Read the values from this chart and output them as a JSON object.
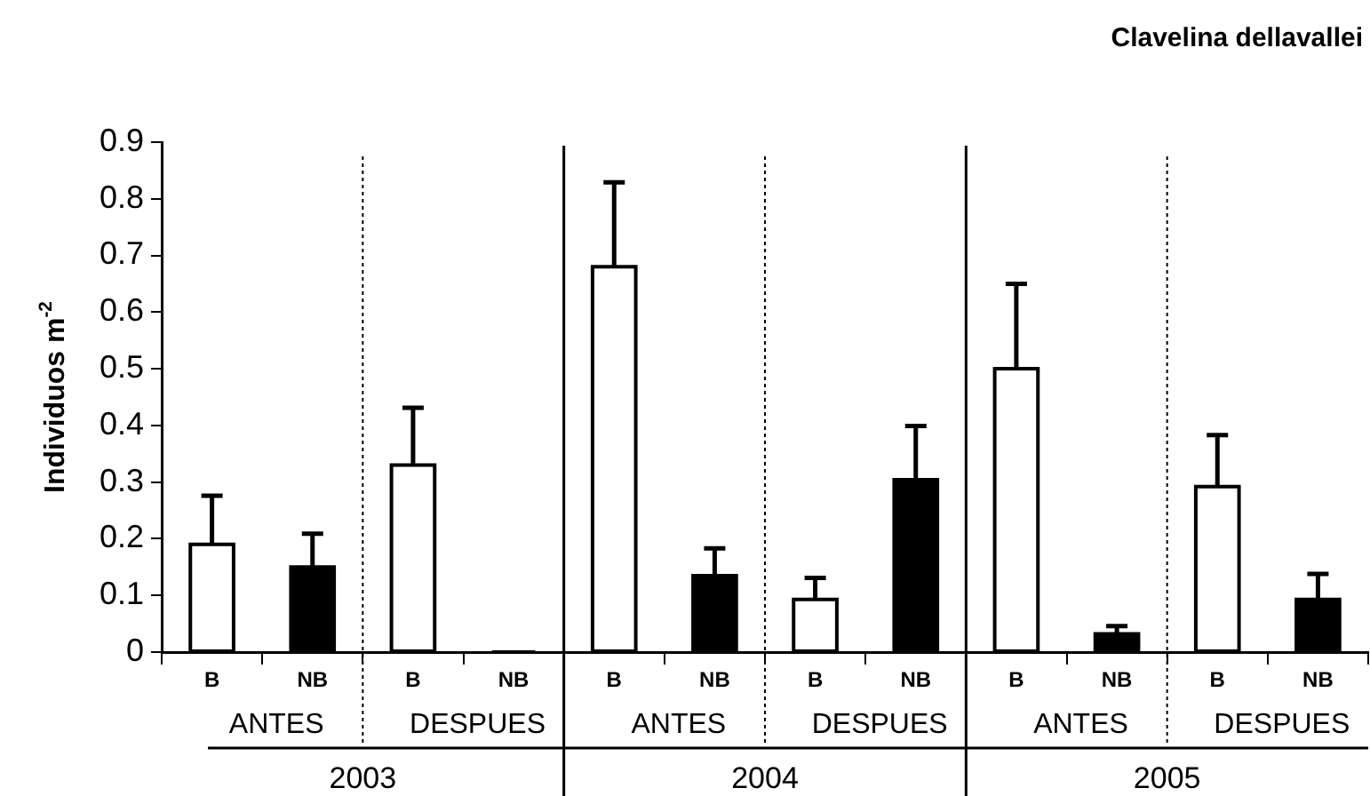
{
  "chart_data": {
    "type": "bar",
    "title": "Clavelina dellavallei",
    "ylabel": "Individuos m$^{-2}$",
    "categories": [
      "B",
      "NB",
      "B",
      "NB",
      "B",
      "NB",
      "B",
      "NB",
      "B",
      "NB",
      "B",
      "NB"
    ],
    "values": [
      0.19,
      0.15,
      0.33,
      0,
      0.68,
      0.135,
      0.093,
      0.304,
      0.5,
      0.032,
      0.292,
      0.093
    ],
    "colors": [
      "#ffffff",
      "#000000",
      "#ffffff",
      "#000000",
      "#ffffff",
      "#000000",
      "#ffffff",
      "#000000",
      "#ffffff",
      "#000000",
      "#ffffff",
      "#000000"
    ],
    "errors": [
      [
        0.19,
        0.276
      ],
      [
        0.15,
        0.209
      ],
      [
        0.33,
        0.431
      ],
      null,
      [
        0.68,
        0.829
      ],
      [
        0.135,
        0.183
      ],
      [
        0.093,
        0.131
      ],
      [
        0.304,
        0.399
      ],
      [
        0.5,
        0.65
      ],
      [
        0.032,
        0.046
      ],
      [
        0.292,
        0.383
      ],
      [
        0.093,
        0.138
      ]
    ],
    "ylim": [
      0,
      0.9
    ],
    "yticks": [
      0,
      0.1,
      0.2,
      0.3,
      0.4,
      0.5,
      0.6,
      0.7,
      0.8,
      0.9
    ],
    "annotations": [
      "ANTES",
      "DESPUES",
      "ANTES",
      "DESPUES",
      "ANTES",
      "DESPUES",
      "2003",
      "2004",
      "2005"
    ],
    "legend": false
  }
}
